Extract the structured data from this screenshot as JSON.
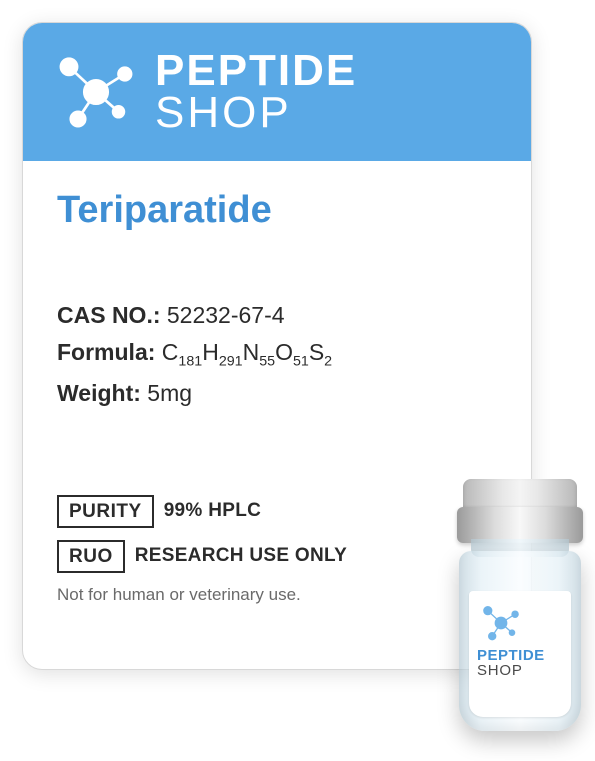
{
  "brand": {
    "line1": "PEPTIDE",
    "line2": "SHOP",
    "accent_color": "#5aa9e6",
    "header_bg": "#5aa9e6",
    "logo_color": "#ffffff"
  },
  "product": {
    "name": "Teriparatide",
    "name_color": "#3f8fd4"
  },
  "specs": {
    "cas_label": "CAS NO.:",
    "cas_value": "52232-67-4",
    "formula_label": "Formula:",
    "formula_base": "C",
    "formula_parts": [
      {
        "el": "C",
        "n": "181"
      },
      {
        "el": "H",
        "n": "291"
      },
      {
        "el": "N",
        "n": "55"
      },
      {
        "el": "O",
        "n": "51"
      },
      {
        "el": "S",
        "n": "2"
      }
    ],
    "weight_label": "Weight:",
    "weight_value": "5mg"
  },
  "badges": {
    "purity_box": "PURITY",
    "purity_text": "99% HPLC",
    "ruo_box": "RUO",
    "ruo_text": "RESEARCH USE ONLY"
  },
  "disclaimer": "Not for human or veterinary use.",
  "vial": {
    "brand_line1": "PEPTIDE",
    "brand_line2": "SHOP",
    "brand1_color": "#3f8fd4",
    "brand2_color": "#4a4a4a",
    "molecule_color": "#5aa9e6"
  },
  "colors": {
    "card_border": "#d8d8d8",
    "text_dark": "#2b2b2b",
    "text_muted": "#6a6a6a"
  }
}
